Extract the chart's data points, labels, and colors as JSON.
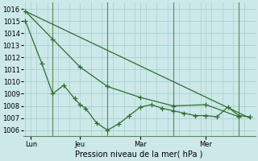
{
  "bg_color": "#cce8e8",
  "grid_color": "#a8d0d0",
  "line_color": "#2d6e2d",
  "vline_color": "#5a8a5a",
  "xlabel": "Pression niveau de la mer( hPa )",
  "ylim": [
    1005.5,
    1016.5
  ],
  "xlim": [
    -0.2,
    21.0
  ],
  "yticks": [
    1006,
    1007,
    1008,
    1009,
    1010,
    1011,
    1012,
    1013,
    1014,
    1015,
    1016
  ],
  "day_labels": [
    "Lun",
    "Jeu",
    "Mar",
    "Mer"
  ],
  "day_positions": [
    0.5,
    5.0,
    10.5,
    16.5
  ],
  "vline_positions": [
    2.5,
    7.5,
    13.5,
    19.5
  ],
  "line1_x": [
    0,
    2.5,
    5.0,
    7.5,
    10.5,
    13.5,
    16.5,
    19.5
  ],
  "line1_y": [
    1015.8,
    1013.5,
    1011.2,
    1009.6,
    1008.7,
    1008.0,
    1008.1,
    1007.1
  ],
  "line2_x": [
    0,
    1.5,
    2.5,
    3.5,
    4.5,
    5.0,
    5.5,
    6.5,
    7.5,
    8.5,
    9.5,
    10.5,
    11.5,
    12.5,
    13.5,
    14.5,
    15.5,
    16.5,
    17.5,
    18.5,
    19.5,
    20.5
  ],
  "line2_y": [
    1015.0,
    1011.5,
    1009.0,
    1009.7,
    1008.6,
    1008.1,
    1007.8,
    1006.6,
    1006.0,
    1006.5,
    1007.2,
    1007.9,
    1008.1,
    1007.8,
    1007.6,
    1007.4,
    1007.2,
    1007.2,
    1007.1,
    1007.9,
    1007.2,
    1007.1
  ],
  "line3_x": [
    0,
    20.5
  ],
  "line3_y": [
    1015.8,
    1007.0
  ],
  "tick_fontsize": 6,
  "xlabel_fontsize": 7
}
